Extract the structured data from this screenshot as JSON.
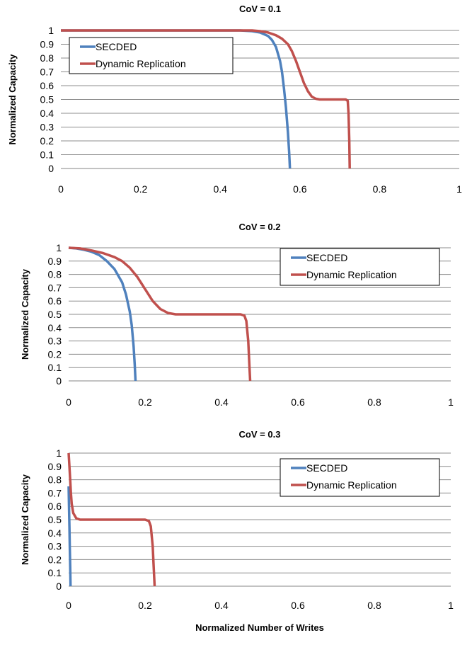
{
  "figure": {
    "xlabel": "Normalized Number of Writes",
    "ylabel": "Normalized Capacity"
  },
  "chart_data": [
    {
      "type": "line",
      "title": "CoV = 0.1",
      "xlabel": "",
      "ylabel": "Normalized Capacity",
      "xlim": [
        0,
        1
      ],
      "ylim": [
        0,
        1
      ],
      "xticks": [
        "0",
        "0.2",
        "0.4",
        "0.6",
        "0.8",
        "1"
      ],
      "yticks": [
        "0",
        "0.1",
        "0.2",
        "0.3",
        "0.4",
        "0.5",
        "0.6",
        "0.7",
        "0.8",
        "0.9",
        "1"
      ],
      "grid": true,
      "legend_position": "top-left",
      "series": [
        {
          "name": "SECDED",
          "color": "#4F81BD",
          "x": [
            0,
            0.45,
            0.48,
            0.5,
            0.52,
            0.53,
            0.54,
            0.55,
            0.555,
            0.56,
            0.565,
            0.57,
            0.573,
            0.575
          ],
          "y": [
            1,
            1,
            0.995,
            0.985,
            0.96,
            0.93,
            0.88,
            0.78,
            0.7,
            0.58,
            0.44,
            0.26,
            0.12,
            0
          ]
        },
        {
          "name": "Dynamic Replication",
          "color": "#C0504D",
          "x": [
            0,
            0.48,
            0.5,
            0.52,
            0.54,
            0.555,
            0.57,
            0.58,
            0.59,
            0.6,
            0.61,
            0.62,
            0.63,
            0.64,
            0.65,
            0.7,
            0.715,
            0.72,
            0.722,
            0.724,
            0.725
          ],
          "y": [
            1,
            1,
            0.995,
            0.985,
            0.965,
            0.94,
            0.9,
            0.85,
            0.78,
            0.7,
            0.62,
            0.56,
            0.52,
            0.505,
            0.5,
            0.5,
            0.5,
            0.49,
            0.4,
            0.2,
            0
          ]
        }
      ]
    },
    {
      "type": "line",
      "title": "CoV = 0.2",
      "xlabel": "",
      "ylabel": "Normalized Capacity",
      "xlim": [
        0,
        1
      ],
      "ylim": [
        0,
        1
      ],
      "xticks": [
        "0",
        "0.2",
        "0.4",
        "0.6",
        "0.8",
        "1"
      ],
      "yticks": [
        "0",
        "0.1",
        "0.2",
        "0.3",
        "0.4",
        "0.5",
        "0.6",
        "0.7",
        "0.8",
        "0.9",
        "1"
      ],
      "grid": true,
      "legend_position": "top-right",
      "series": [
        {
          "name": "SECDED",
          "color": "#4F81BD",
          "x": [
            0,
            0.02,
            0.04,
            0.06,
            0.08,
            0.1,
            0.12,
            0.14,
            0.15,
            0.16,
            0.165,
            0.17,
            0.173,
            0.175
          ],
          "y": [
            1,
            0.995,
            0.985,
            0.97,
            0.945,
            0.9,
            0.84,
            0.74,
            0.65,
            0.52,
            0.42,
            0.26,
            0.12,
            0
          ]
        },
        {
          "name": "Dynamic Replication",
          "color": "#C0504D",
          "x": [
            0,
            0.03,
            0.06,
            0.09,
            0.12,
            0.14,
            0.16,
            0.18,
            0.2,
            0.22,
            0.24,
            0.26,
            0.28,
            0.3,
            0.45,
            0.46,
            0.465,
            0.47,
            0.473,
            0.475
          ],
          "y": [
            1,
            0.995,
            0.98,
            0.96,
            0.93,
            0.9,
            0.85,
            0.78,
            0.69,
            0.6,
            0.54,
            0.51,
            0.5,
            0.5,
            0.5,
            0.49,
            0.45,
            0.3,
            0.12,
            0
          ]
        }
      ]
    },
    {
      "type": "line",
      "title": "CoV = 0.3",
      "xlabel": "Normalized Number of Writes",
      "ylabel": "Normalized Capacity",
      "xlim": [
        0,
        1
      ],
      "ylim": [
        0,
        1
      ],
      "xticks": [
        "0",
        "0.2",
        "0.4",
        "0.6",
        "0.8",
        "1"
      ],
      "yticks": [
        "0",
        "0.1",
        "0.2",
        "0.3",
        "0.4",
        "0.5",
        "0.6",
        "0.7",
        "0.8",
        "0.9",
        "1"
      ],
      "grid": true,
      "legend_position": "top-right",
      "series": [
        {
          "name": "SECDED",
          "color": "#4F81BD",
          "x": [
            0,
            0.001,
            0.002,
            0.003,
            0.004,
            0.005
          ],
          "y": [
            0.75,
            0.6,
            0.45,
            0.3,
            0.15,
            0
          ]
        },
        {
          "name": "Dynamic Replication",
          "color": "#C0504D",
          "x": [
            0,
            0.002,
            0.004,
            0.006,
            0.008,
            0.012,
            0.02,
            0.03,
            0.05,
            0.1,
            0.2,
            0.21,
            0.215,
            0.22,
            0.223,
            0.225
          ],
          "y": [
            1,
            0.9,
            0.8,
            0.7,
            0.62,
            0.55,
            0.51,
            0.5,
            0.5,
            0.5,
            0.5,
            0.49,
            0.45,
            0.3,
            0.12,
            0
          ]
        }
      ]
    }
  ]
}
